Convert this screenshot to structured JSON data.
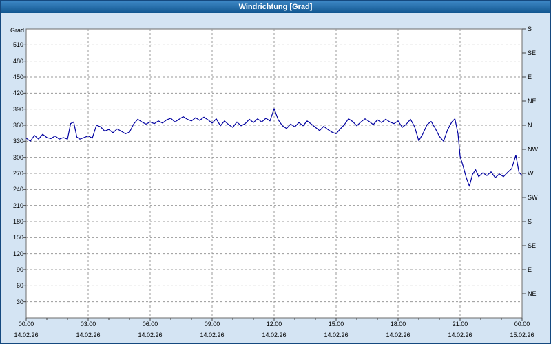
{
  "window": {
    "title": "Windrichtung [Grad]"
  },
  "colors": {
    "titlebar_top": "#3c86c4",
    "titlebar_bottom": "#11568f",
    "background": "#d4e4f3",
    "border": "#15497f",
    "plot_bg": "#ffffff",
    "plot_border": "#6b6b6b",
    "grid": "#9a9a9a",
    "axis_tick": "#444444",
    "line": "#0000a0"
  },
  "chart_data": {
    "type": "line",
    "title": "Windrichtung [Grad]",
    "ylabel": "Grad",
    "xlabel": "",
    "ylim": [
      0,
      540
    ],
    "xlim_hours": [
      0,
      24
    ],
    "grid": "dashed",
    "legend": "none",
    "y_ticks": [
      30,
      60,
      90,
      120,
      150,
      180,
      210,
      240,
      270,
      300,
      330,
      360,
      390,
      420,
      450,
      480,
      510
    ],
    "right_axis": {
      "unit": "compass",
      "labels": [
        {
          "deg": 540,
          "label": "S"
        },
        {
          "deg": 495,
          "label": "SE"
        },
        {
          "deg": 450,
          "label": "E"
        },
        {
          "deg": 405,
          "label": "NE"
        },
        {
          "deg": 360,
          "label": "N"
        },
        {
          "deg": 315,
          "label": "NW"
        },
        {
          "deg": 270,
          "label": "W"
        },
        {
          "deg": 225,
          "label": "SW"
        },
        {
          "deg": 180,
          "label": "S"
        },
        {
          "deg": 135,
          "label": "SE"
        },
        {
          "deg": 90,
          "label": "E"
        },
        {
          "deg": 45,
          "label": "NE"
        }
      ]
    },
    "x_ticks": [
      {
        "hour": 0,
        "time": "00:00",
        "date": "14.02.26"
      },
      {
        "hour": 3,
        "time": "03:00",
        "date": "14.02.26"
      },
      {
        "hour": 6,
        "time": "06:00",
        "date": "14.02.26"
      },
      {
        "hour": 9,
        "time": "09:00",
        "date": "14.02.26"
      },
      {
        "hour": 12,
        "time": "12:00",
        "date": "14.02.26"
      },
      {
        "hour": 15,
        "time": "15:00",
        "date": "14.02.26"
      },
      {
        "hour": 18,
        "time": "18:00",
        "date": "14.02.26"
      },
      {
        "hour": 21,
        "time": "21:00",
        "date": "14.02.26"
      },
      {
        "hour": 24,
        "time": "00:00",
        "date": "15.02.26"
      }
    ],
    "x_minor_tick_hours": 1,
    "series": [
      {
        "name": "Windrichtung",
        "unit": "Grad",
        "color": "#0000a0",
        "points": [
          [
            0,
            336
          ],
          [
            0.2,
            330
          ],
          [
            0.4,
            341
          ],
          [
            0.6,
            334
          ],
          [
            0.8,
            343
          ],
          [
            1.0,
            337
          ],
          [
            1.2,
            335
          ],
          [
            1.4,
            340
          ],
          [
            1.6,
            334
          ],
          [
            1.8,
            337
          ],
          [
            2.0,
            334
          ],
          [
            2.15,
            363
          ],
          [
            2.3,
            366
          ],
          [
            2.45,
            338
          ],
          [
            2.6,
            334
          ],
          [
            2.8,
            337
          ],
          [
            3.0,
            340
          ],
          [
            3.2,
            336
          ],
          [
            3.4,
            360
          ],
          [
            3.6,
            357
          ],
          [
            3.8,
            349
          ],
          [
            4.0,
            352
          ],
          [
            4.2,
            346
          ],
          [
            4.4,
            353
          ],
          [
            4.6,
            349
          ],
          [
            4.8,
            344
          ],
          [
            5.0,
            347
          ],
          [
            5.2,
            362
          ],
          [
            5.4,
            371
          ],
          [
            5.6,
            366
          ],
          [
            5.8,
            362
          ],
          [
            6.0,
            366
          ],
          [
            6.2,
            363
          ],
          [
            6.4,
            368
          ],
          [
            6.6,
            364
          ],
          [
            6.8,
            370
          ],
          [
            7.0,
            373
          ],
          [
            7.2,
            366
          ],
          [
            7.4,
            371
          ],
          [
            7.6,
            376
          ],
          [
            7.8,
            371
          ],
          [
            8.0,
            368
          ],
          [
            8.2,
            374
          ],
          [
            8.4,
            369
          ],
          [
            8.6,
            375
          ],
          [
            8.8,
            370
          ],
          [
            9.0,
            364
          ],
          [
            9.2,
            372
          ],
          [
            9.4,
            359
          ],
          [
            9.6,
            368
          ],
          [
            9.8,
            361
          ],
          [
            10.0,
            356
          ],
          [
            10.2,
            366
          ],
          [
            10.4,
            359
          ],
          [
            10.6,
            363
          ],
          [
            10.8,
            371
          ],
          [
            11.0,
            365
          ],
          [
            11.2,
            372
          ],
          [
            11.4,
            366
          ],
          [
            11.6,
            373
          ],
          [
            11.8,
            368
          ],
          [
            12.0,
            391
          ],
          [
            12.2,
            370
          ],
          [
            12.4,
            359
          ],
          [
            12.6,
            354
          ],
          [
            12.8,
            362
          ],
          [
            13.0,
            357
          ],
          [
            13.2,
            365
          ],
          [
            13.4,
            359
          ],
          [
            13.6,
            368
          ],
          [
            13.8,
            362
          ],
          [
            14.0,
            356
          ],
          [
            14.2,
            350
          ],
          [
            14.4,
            358
          ],
          [
            14.6,
            352
          ],
          [
            14.8,
            347
          ],
          [
            15.0,
            344
          ],
          [
            15.2,
            353
          ],
          [
            15.4,
            361
          ],
          [
            15.6,
            372
          ],
          [
            15.8,
            367
          ],
          [
            16.0,
            359
          ],
          [
            16.2,
            366
          ],
          [
            16.4,
            372
          ],
          [
            16.6,
            367
          ],
          [
            16.8,
            361
          ],
          [
            17.0,
            370
          ],
          [
            17.2,
            365
          ],
          [
            17.4,
            371
          ],
          [
            17.6,
            366
          ],
          [
            17.8,
            363
          ],
          [
            18.0,
            368
          ],
          [
            18.2,
            356
          ],
          [
            18.4,
            362
          ],
          [
            18.6,
            371
          ],
          [
            18.8,
            357
          ],
          [
            19.0,
            331
          ],
          [
            19.2,
            344
          ],
          [
            19.4,
            361
          ],
          [
            19.6,
            367
          ],
          [
            19.8,
            354
          ],
          [
            20.0,
            339
          ],
          [
            20.2,
            330
          ],
          [
            20.4,
            352
          ],
          [
            20.6,
            366
          ],
          [
            20.75,
            372
          ],
          [
            20.9,
            344
          ],
          [
            21.0,
            302
          ],
          [
            21.15,
            283
          ],
          [
            21.3,
            262
          ],
          [
            21.45,
            246
          ],
          [
            21.6,
            268
          ],
          [
            21.75,
            277
          ],
          [
            21.9,
            264
          ],
          [
            22.1,
            271
          ],
          [
            22.3,
            266
          ],
          [
            22.5,
            273
          ],
          [
            22.7,
            262
          ],
          [
            22.9,
            269
          ],
          [
            23.1,
            264
          ],
          [
            23.3,
            272
          ],
          [
            23.5,
            279
          ],
          [
            23.7,
            304
          ],
          [
            23.85,
            272
          ],
          [
            24.0,
            266
          ]
        ]
      }
    ]
  }
}
